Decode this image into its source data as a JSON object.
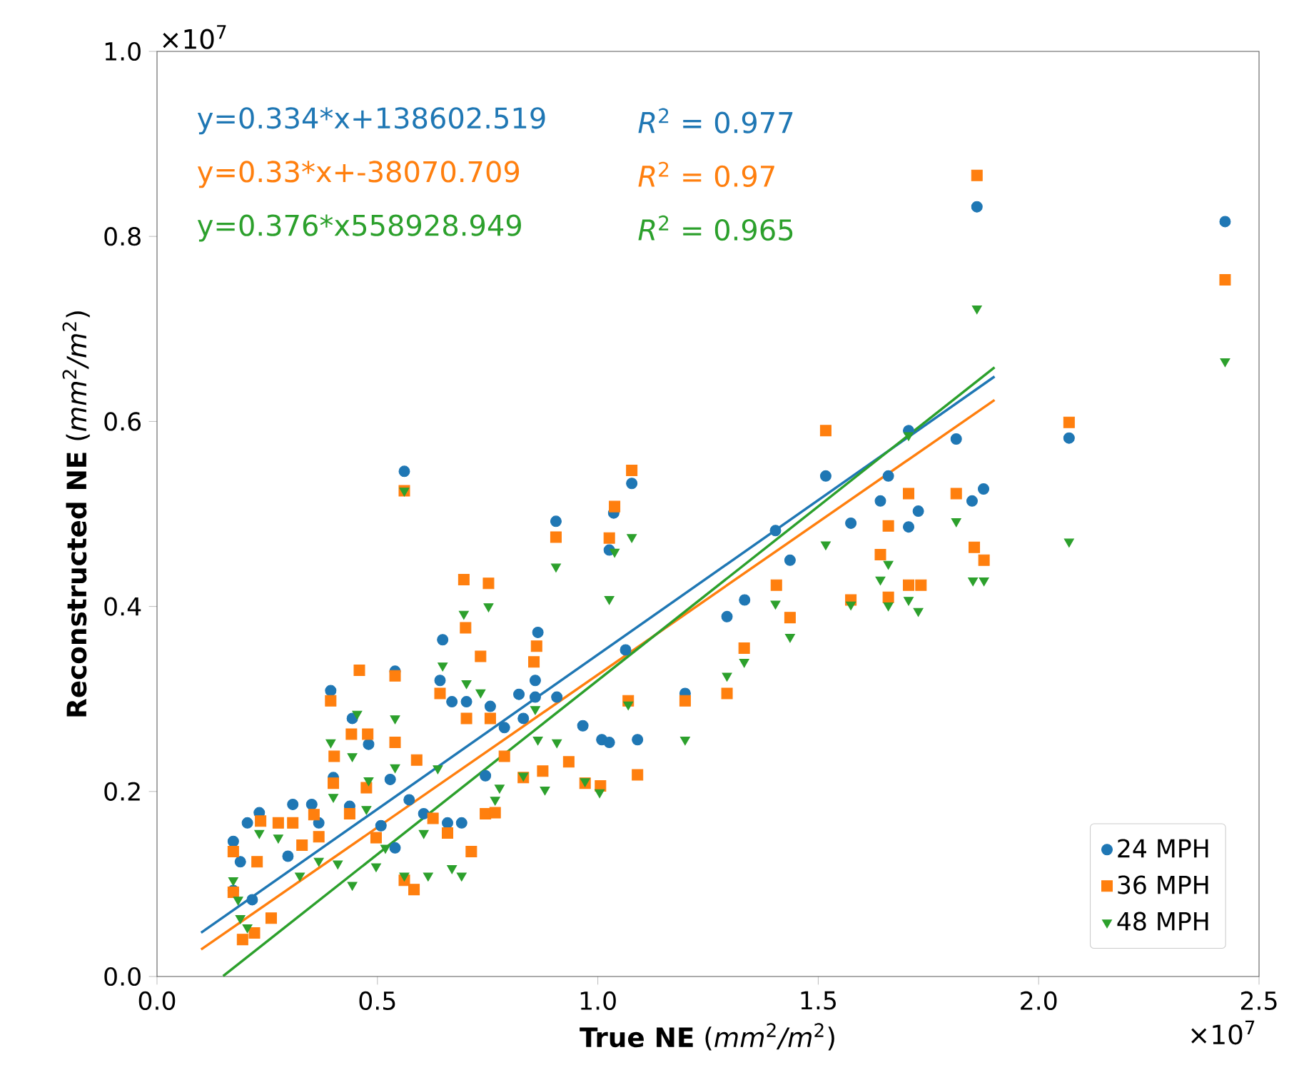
{
  "chart_data": {
    "type": "scatter",
    "xlabel": "**True NE** (*mm*$^{2}$*/m*$^{2}$)",
    "ylabel": "**Reconstructed NE** (*mm*$^{2}$*/m*$^{2}$)",
    "xlim": [
      0,
      2.5
    ],
    "ylim": [
      0,
      1.0
    ],
    "xticks": [
      {
        "value": 0,
        "label": "0.0"
      },
      0.5,
      {
        "value": 1,
        "label": "1.0"
      },
      1.5,
      {
        "value": 2,
        "label": "2.0"
      },
      2.5
    ],
    "yticks": [
      {
        "value": 0,
        "label": "0.0"
      },
      0.2,
      0.4,
      0.6,
      0.8,
      {
        "value": 1,
        "label": "1.0"
      }
    ],
    "legend": "bottom right",
    "series": [
      {
        "name": "24 MPH",
        "color": "#1f77b4",
        "marker": "circle",
        "x": [
          0.561,
          0.905,
          0.648,
          0.864,
          0.394,
          0.54,
          0.443,
          0.48,
          0.642,
          0.669,
          0.702,
          0.756,
          0.821,
          0.858,
          0.858,
          0.529,
          0.4,
          0.308,
          0.351,
          0.437,
          0.232,
          0.205,
          0.173,
          0.189,
          0.297,
          0.367,
          0.508,
          0.572,
          0.605,
          0.659,
          0.691,
          0.745,
          0.788,
          0.831,
          0.907,
          0.966,
          0.216,
          0.54,
          0.173,
          1.077,
          1.036,
          1.026,
          1.063,
          1.009,
          1.026,
          1.09,
          1.198,
          1.293,
          1.333,
          1.403,
          1.436,
          1.517,
          1.574,
          1.641,
          1.659,
          1.705,
          1.727,
          1.813,
          1.849,
          1.875,
          1.705,
          1.86,
          2.423,
          2.069
        ],
        "values": [
          0.546,
          0.492,
          0.364,
          0.372,
          0.309,
          0.33,
          0.279,
          0.251,
          0.32,
          0.297,
          0.297,
          0.292,
          0.305,
          0.32,
          0.302,
          0.213,
          0.215,
          0.186,
          0.186,
          0.184,
          0.177,
          0.166,
          0.146,
          0.124,
          0.13,
          0.166,
          0.163,
          0.191,
          0.176,
          0.166,
          0.166,
          0.217,
          0.269,
          0.279,
          0.302,
          0.271,
          0.083,
          0.139,
          0.093,
          0.533,
          0.501,
          0.461,
          0.353,
          0.256,
          0.253,
          0.256,
          0.306,
          0.389,
          0.407,
          0.482,
          0.45,
          0.541,
          0.49,
          0.514,
          0.541,
          0.486,
          0.503,
          0.581,
          0.514,
          0.527,
          0.59,
          0.832,
          0.816,
          0.582
        ]
      },
      {
        "name": "36 MPH",
        "color": "#ff7f0e",
        "marker": "square",
        "x": [
          0.561,
          0.905,
          0.696,
          0.752,
          0.7,
          0.734,
          0.861,
          0.855,
          0.459,
          0.54,
          0.394,
          0.642,
          0.441,
          0.478,
          0.54,
          0.402,
          0.589,
          0.4,
          0.475,
          0.235,
          0.275,
          0.308,
          0.356,
          0.437,
          0.367,
          0.329,
          0.173,
          0.227,
          0.173,
          0.259,
          0.194,
          0.221,
          0.561,
          0.583,
          0.497,
          0.659,
          0.713,
          0.702,
          0.756,
          0.745,
          0.767,
          0.788,
          0.831,
          0.875,
          0.626,
          0.934,
          0.971,
          1.006,
          1.077,
          1.038,
          1.026,
          1.069,
          1.198,
          1.293,
          1.332,
          1.09,
          1.405,
          1.436,
          1.517,
          1.574,
          1.641,
          1.659,
          1.659,
          1.705,
          1.705,
          1.733,
          1.813,
          1.86,
          2.423,
          2.069,
          1.854,
          1.876
        ],
        "values": [
          0.525,
          0.475,
          0.429,
          0.425,
          0.377,
          0.346,
          0.357,
          0.34,
          0.331,
          0.325,
          0.298,
          0.306,
          0.262,
          0.262,
          0.253,
          0.238,
          0.234,
          0.209,
          0.204,
          0.168,
          0.166,
          0.166,
          0.175,
          0.176,
          0.151,
          0.142,
          0.135,
          0.124,
          0.091,
          0.063,
          0.04,
          0.047,
          0.104,
          0.094,
          0.15,
          0.155,
          0.135,
          0.279,
          0.279,
          0.176,
          0.177,
          0.238,
          0.215,
          0.222,
          0.171,
          0.232,
          0.209,
          0.206,
          0.547,
          0.508,
          0.474,
          0.298,
          0.298,
          0.306,
          0.355,
          0.218,
          0.423,
          0.388,
          0.59,
          0.407,
          0.456,
          0.487,
          0.41,
          0.522,
          0.423,
          0.423,
          0.522,
          0.866,
          0.753,
          0.599,
          0.464,
          0.45
        ]
      },
      {
        "name": "48 MPH",
        "color": "#2ca02c",
        "marker": "triangle",
        "x": [
          0.561,
          0.905,
          0.696,
          0.752,
          0.734,
          0.648,
          0.702,
          0.454,
          0.54,
          0.394,
          0.443,
          0.54,
          0.48,
          0.4,
          0.475,
          0.858,
          0.864,
          0.907,
          0.88,
          0.831,
          0.777,
          0.767,
          0.637,
          0.275,
          0.232,
          0.324,
          0.41,
          0.443,
          0.497,
          0.561,
          0.615,
          0.691,
          0.669,
          0.184,
          0.205,
          0.189,
          0.605,
          0.518,
          0.367,
          0.173,
          1.077,
          1.038,
          1.026,
          1.069,
          1.198,
          1.293,
          1.332,
          1.403,
          1.436,
          1.517,
          1.574,
          1.641,
          1.659,
          1.659,
          1.705,
          1.727,
          1.813,
          1.004,
          0.971,
          1.705,
          1.86,
          2.423,
          2.069,
          1.851,
          1.876
        ],
        "values": [
          0.525,
          0.443,
          0.392,
          0.4,
          0.307,
          0.336,
          0.317,
          0.284,
          0.279,
          0.253,
          0.238,
          0.226,
          0.212,
          0.194,
          0.181,
          0.289,
          0.256,
          0.253,
          0.202,
          0.217,
          0.204,
          0.191,
          0.225,
          0.15,
          0.155,
          0.109,
          0.122,
          0.099,
          0.119,
          0.109,
          0.109,
          0.109,
          0.117,
          0.083,
          0.053,
          0.063,
          0.155,
          0.139,
          0.125,
          0.104,
          0.475,
          0.459,
          0.408,
          0.294,
          0.256,
          0.325,
          0.34,
          0.403,
          0.367,
          0.467,
          0.402,
          0.429,
          0.446,
          0.401,
          0.407,
          0.395,
          0.492,
          0.199,
          0.211,
          0.585,
          0.722,
          0.665,
          0.47,
          0.428,
          0.428
        ]
      },
      {
        "type": "line",
        "color": "#1f77b4",
        "line_style": "solid",
        "x": [
          0.1,
          1.9
        ],
        "values": [
          0.0473,
          0.6485
        ]
      },
      {
        "type": "line",
        "color": "#ff7f0e",
        "line_style": "solid",
        "x": [
          0.1,
          1.9
        ],
        "values": [
          0.0292,
          0.6232
        ]
      },
      {
        "type": "line",
        "color": "#2ca02c",
        "line_style": "solid",
        "x": [
          0.15,
          1.9
        ],
        "values": [
          0.0005,
          0.6585
        ]
      }
    ],
    "annotations": [
      "y=0.334*x+138602.519",
      "y=0.33*x+-38070.709",
      "y=0.376*x558928.949",
      "*R*$^{2}$ = 0.977",
      "*R*$^{2}$ = 0.97",
      "*R*$^{2}$ = 0.965",
      "×10$^{7}$",
      "×10$^{7}$"
    ]
  }
}
